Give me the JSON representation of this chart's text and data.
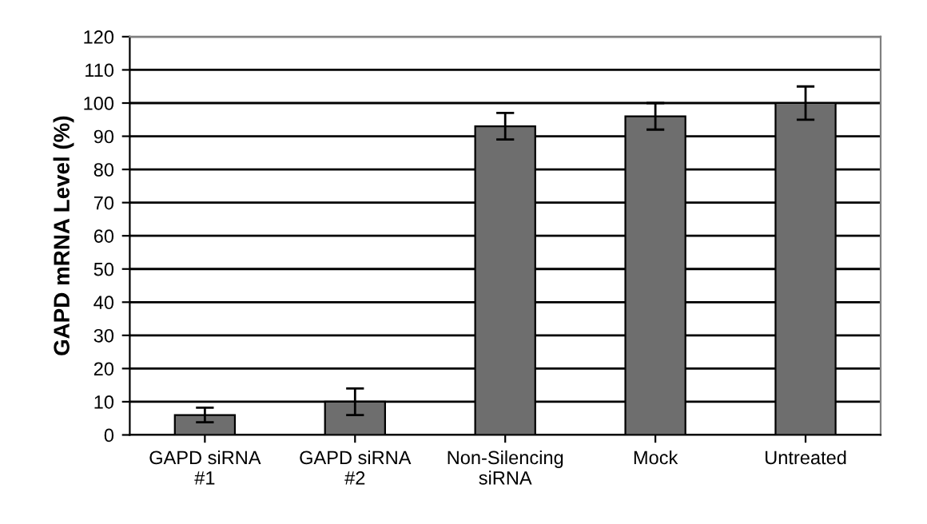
{
  "chart_data": {
    "type": "bar",
    "ylabel": "GAPD mRNA Level (%)",
    "categories": [
      "GAPD siRNA\n#1",
      "GAPD siRNA\n#2",
      "Non-Silencing\nsiRNA",
      "Mock",
      "Untreated"
    ],
    "values": [
      6,
      10,
      93,
      96,
      100
    ],
    "errors": [
      2.2,
      4,
      4,
      4,
      5
    ],
    "color": "#6e6e6e",
    "ylim": [
      0,
      120
    ],
    "yticks": [
      0,
      10,
      20,
      30,
      40,
      50,
      60,
      70,
      80,
      90,
      100,
      110,
      120
    ],
    "grid": "y"
  }
}
